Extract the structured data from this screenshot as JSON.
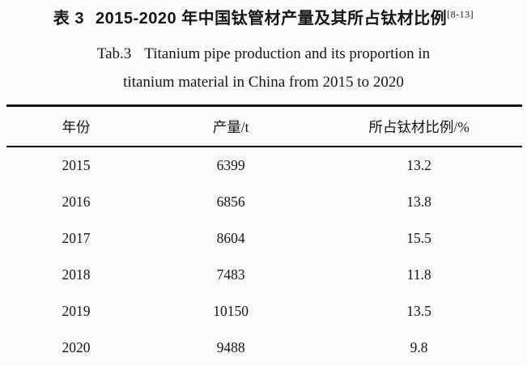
{
  "title": {
    "zh_label": "表 3",
    "zh_text": "2015-2020 年中国钛管材产量及其所占钛材比例",
    "zh_ref": "[8-13]",
    "en_label": "Tab.3",
    "en_line1": "Titanium pipe production and its proportion in",
    "en_line2": "titanium material in China from 2015 to 2020"
  },
  "table": {
    "headers": [
      "年份",
      "产量/t",
      "所占钛材比例/%"
    ],
    "rows": [
      [
        "2015",
        "6399",
        "13.2"
      ],
      [
        "2016",
        "6856",
        "13.8"
      ],
      [
        "2017",
        "8604",
        "15.5"
      ],
      [
        "2018",
        "7483",
        "11.8"
      ],
      [
        "2019",
        "10150",
        "13.5"
      ],
      [
        "2020",
        "9488",
        "9.8"
      ]
    ]
  },
  "colors": {
    "background": "#fbfbfa",
    "text": "#151515",
    "rule": "#151515"
  },
  "chart_data": {
    "type": "table",
    "title": "表 3 2015-2020 年中国钛管材产量及其所占钛材比例 [8-13] / Tab.3 Titanium pipe production and its proportion in titanium material in China from 2015 to 2020",
    "columns": [
      "年份",
      "产量/t",
      "所占钛材比例/%"
    ],
    "rows": [
      [
        2015,
        6399,
        13.2
      ],
      [
        2016,
        6856,
        13.8
      ],
      [
        2017,
        8604,
        15.5
      ],
      [
        2018,
        7483,
        11.8
      ],
      [
        2019,
        10150,
        13.5
      ],
      [
        2020,
        9488,
        9.8
      ]
    ]
  }
}
